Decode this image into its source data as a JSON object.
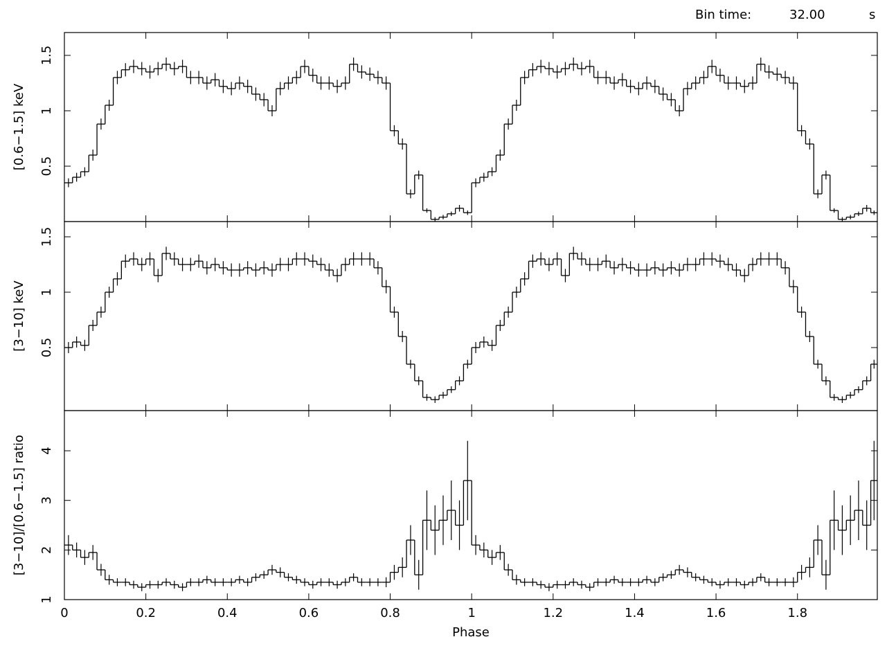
{
  "header": {
    "label": "Bin time:",
    "value": "32.00",
    "unit": "s"
  },
  "chart_data": [
    {
      "type": "step",
      "ylabel": "[0.6−1.5] keV",
      "ylim": [
        0,
        1.706
      ],
      "yticks": [
        0.5,
        1,
        1.5
      ],
      "xlim": [
        0,
        1.996
      ],
      "xticks": [
        0,
        0.2,
        0.4,
        0.6,
        0.8,
        1,
        1.2,
        1.4,
        1.6,
        1.8
      ],
      "x": [
        0,
        0.02,
        0.04,
        0.06,
        0.08,
        0.1,
        0.12,
        0.14,
        0.16,
        0.18,
        0.2,
        0.22,
        0.24,
        0.26,
        0.28,
        0.3,
        0.32,
        0.34,
        0.36,
        0.38,
        0.4,
        0.42,
        0.44,
        0.46,
        0.48,
        0.5,
        0.52,
        0.54,
        0.56,
        0.58,
        0.6,
        0.62,
        0.64,
        0.66,
        0.68,
        0.7,
        0.72,
        0.74,
        0.76,
        0.78,
        0.8,
        0.82,
        0.84,
        0.86,
        0.88,
        0.9,
        0.92,
        0.94,
        0.96,
        0.98,
        1,
        1.02,
        1.04,
        1.06,
        1.08,
        1.1,
        1.12,
        1.14,
        1.16,
        1.18,
        1.2,
        1.22,
        1.24,
        1.26,
        1.28,
        1.3,
        1.32,
        1.34,
        1.36,
        1.38,
        1.4,
        1.42,
        1.44,
        1.46,
        1.48,
        1.5,
        1.52,
        1.54,
        1.56,
        1.58,
        1.6,
        1.62,
        1.64,
        1.66,
        1.68,
        1.7,
        1.72,
        1.74,
        1.76,
        1.78,
        1.8,
        1.82,
        1.84,
        1.86,
        1.88,
        1.9,
        1.92,
        1.94,
        1.96,
        1.98
      ],
      "series": [
        {
          "color": "#000000",
          "values": [
            0.35,
            0.4,
            0.45,
            0.6,
            0.88,
            1.05,
            1.3,
            1.37,
            1.4,
            1.38,
            1.35,
            1.38,
            1.42,
            1.38,
            1.4,
            1.3,
            1.3,
            1.25,
            1.28,
            1.22,
            1.2,
            1.25,
            1.22,
            1.15,
            1.1,
            1.0,
            1.2,
            1.25,
            1.3,
            1.4,
            1.32,
            1.25,
            1.25,
            1.22,
            1.25,
            1.42,
            1.35,
            1.33,
            1.3,
            1.25,
            0.82,
            0.7,
            0.25,
            0.42,
            0.1,
            0.02,
            0.04,
            0.07,
            0.12,
            0.08,
            0.35,
            0.4,
            0.45,
            0.6,
            0.88,
            1.05,
            1.3,
            1.37,
            1.4,
            1.38,
            1.35,
            1.38,
            1.42,
            1.38,
            1.4,
            1.3,
            1.3,
            1.25,
            1.28,
            1.22,
            1.2,
            1.25,
            1.22,
            1.15,
            1.1,
            1.0,
            1.2,
            1.25,
            1.3,
            1.4,
            1.32,
            1.25,
            1.25,
            1.22,
            1.25,
            1.42,
            1.35,
            1.33,
            1.3,
            1.25,
            0.82,
            0.7,
            0.25,
            0.42,
            0.1,
            0.02,
            0.04,
            0.07,
            0.12,
            0.08
          ],
          "errors": [
            0.04,
            0.04,
            0.04,
            0.05,
            0.05,
            0.05,
            0.06,
            0.06,
            0.06,
            0.06,
            0.06,
            0.06,
            0.06,
            0.06,
            0.06,
            0.06,
            0.06,
            0.06,
            0.06,
            0.06,
            0.06,
            0.06,
            0.06,
            0.06,
            0.06,
            0.05,
            0.06,
            0.06,
            0.06,
            0.06,
            0.06,
            0.06,
            0.06,
            0.06,
            0.06,
            0.06,
            0.06,
            0.06,
            0.06,
            0.06,
            0.05,
            0.05,
            0.04,
            0.04,
            0.02,
            0.02,
            0.02,
            0.02,
            0.03,
            0.02,
            0.04,
            0.04,
            0.04,
            0.05,
            0.05,
            0.05,
            0.06,
            0.06,
            0.06,
            0.06,
            0.06,
            0.06,
            0.06,
            0.06,
            0.06,
            0.06,
            0.06,
            0.06,
            0.06,
            0.06,
            0.06,
            0.06,
            0.06,
            0.06,
            0.06,
            0.05,
            0.06,
            0.06,
            0.06,
            0.06,
            0.06,
            0.06,
            0.06,
            0.06,
            0.06,
            0.06,
            0.06,
            0.06,
            0.06,
            0.06,
            0.05,
            0.05,
            0.04,
            0.04,
            0.02,
            0.02,
            0.02,
            0.02,
            0.03,
            0.02
          ]
        }
      ]
    },
    {
      "type": "step",
      "ylabel": "[3−10] keV",
      "ylim": [
        -0.069,
        1.6375
      ],
      "yticks": [
        0.5,
        1,
        1.5
      ],
      "xlim": [
        0,
        1.996
      ],
      "xticks": [
        0,
        0.2,
        0.4,
        0.6,
        0.8,
        1,
        1.2,
        1.4,
        1.6,
        1.8
      ],
      "x": [
        0,
        0.02,
        0.04,
        0.06,
        0.08,
        0.1,
        0.12,
        0.14,
        0.16,
        0.18,
        0.2,
        0.22,
        0.24,
        0.26,
        0.28,
        0.3,
        0.32,
        0.34,
        0.36,
        0.38,
        0.4,
        0.42,
        0.44,
        0.46,
        0.48,
        0.5,
        0.52,
        0.54,
        0.56,
        0.58,
        0.6,
        0.62,
        0.64,
        0.66,
        0.68,
        0.7,
        0.72,
        0.74,
        0.76,
        0.78,
        0.8,
        0.82,
        0.84,
        0.86,
        0.88,
        0.9,
        0.92,
        0.94,
        0.96,
        0.98,
        1,
        1.02,
        1.04,
        1.06,
        1.08,
        1.1,
        1.12,
        1.14,
        1.16,
        1.18,
        1.2,
        1.22,
        1.24,
        1.26,
        1.28,
        1.3,
        1.32,
        1.34,
        1.36,
        1.38,
        1.4,
        1.42,
        1.44,
        1.46,
        1.48,
        1.5,
        1.52,
        1.54,
        1.56,
        1.58,
        1.6,
        1.62,
        1.64,
        1.66,
        1.68,
        1.7,
        1.72,
        1.74,
        1.76,
        1.78,
        1.8,
        1.82,
        1.84,
        1.86,
        1.88,
        1.9,
        1.92,
        1.94,
        1.96,
        1.98
      ],
      "series": [
        {
          "color": "#000000",
          "values": [
            0.5,
            0.55,
            0.52,
            0.7,
            0.82,
            1.0,
            1.12,
            1.28,
            1.3,
            1.25,
            1.3,
            1.15,
            1.35,
            1.3,
            1.25,
            1.25,
            1.28,
            1.22,
            1.25,
            1.22,
            1.2,
            1.2,
            1.22,
            1.2,
            1.22,
            1.2,
            1.25,
            1.25,
            1.3,
            1.3,
            1.28,
            1.25,
            1.2,
            1.15,
            1.25,
            1.3,
            1.3,
            1.3,
            1.22,
            1.05,
            0.82,
            0.6,
            0.35,
            0.2,
            0.05,
            0.03,
            0.07,
            0.12,
            0.2,
            0.35,
            0.5,
            0.55,
            0.52,
            0.7,
            0.82,
            1.0,
            1.12,
            1.28,
            1.3,
            1.25,
            1.3,
            1.15,
            1.35,
            1.3,
            1.25,
            1.25,
            1.28,
            1.22,
            1.25,
            1.22,
            1.2,
            1.2,
            1.22,
            1.2,
            1.22,
            1.2,
            1.25,
            1.25,
            1.3,
            1.3,
            1.28,
            1.25,
            1.2,
            1.15,
            1.25,
            1.3,
            1.3,
            1.3,
            1.22,
            1.05,
            0.82,
            0.6,
            0.35,
            0.2,
            0.05,
            0.03,
            0.07,
            0.12,
            0.2,
            0.35
          ],
          "errors": [
            0.05,
            0.05,
            0.05,
            0.05,
            0.05,
            0.05,
            0.06,
            0.06,
            0.06,
            0.06,
            0.06,
            0.06,
            0.06,
            0.06,
            0.06,
            0.06,
            0.06,
            0.06,
            0.06,
            0.06,
            0.06,
            0.06,
            0.06,
            0.06,
            0.06,
            0.06,
            0.06,
            0.06,
            0.06,
            0.06,
            0.06,
            0.06,
            0.06,
            0.06,
            0.06,
            0.06,
            0.06,
            0.06,
            0.06,
            0.06,
            0.05,
            0.05,
            0.04,
            0.04,
            0.03,
            0.03,
            0.03,
            0.03,
            0.04,
            0.04,
            0.05,
            0.05,
            0.05,
            0.05,
            0.05,
            0.05,
            0.06,
            0.06,
            0.06,
            0.06,
            0.06,
            0.06,
            0.06,
            0.06,
            0.06,
            0.06,
            0.06,
            0.06,
            0.06,
            0.06,
            0.06,
            0.06,
            0.06,
            0.06,
            0.06,
            0.06,
            0.06,
            0.06,
            0.06,
            0.06,
            0.06,
            0.06,
            0.06,
            0.06,
            0.06,
            0.06,
            0.06,
            0.06,
            0.06,
            0.06,
            0.05,
            0.05,
            0.04,
            0.04,
            0.03,
            0.03,
            0.03,
            0.03,
            0.04,
            0.04
          ]
        }
      ]
    },
    {
      "type": "step",
      "ylabel": "[3−10]/[0.6−1.5] ratio",
      "xlabel": "Phase",
      "ylim": [
        1,
        4.81
      ],
      "yticks": [
        1,
        2,
        3,
        4
      ],
      "xlim": [
        0,
        1.996
      ],
      "xticks": [
        0,
        0.2,
        0.4,
        0.6,
        0.8,
        1,
        1.2,
        1.4,
        1.6,
        1.8
      ],
      "x": [
        0,
        0.02,
        0.04,
        0.06,
        0.08,
        0.1,
        0.12,
        0.14,
        0.16,
        0.18,
        0.2,
        0.22,
        0.24,
        0.26,
        0.28,
        0.3,
        0.32,
        0.34,
        0.36,
        0.38,
        0.4,
        0.42,
        0.44,
        0.46,
        0.48,
        0.5,
        0.52,
        0.54,
        0.56,
        0.58,
        0.6,
        0.62,
        0.64,
        0.66,
        0.68,
        0.7,
        0.72,
        0.74,
        0.76,
        0.78,
        0.8,
        0.82,
        0.84,
        0.86,
        0.88,
        0.9,
        0.92,
        0.94,
        0.96,
        0.98,
        1,
        1.02,
        1.04,
        1.06,
        1.08,
        1.1,
        1.12,
        1.14,
        1.16,
        1.18,
        1.2,
        1.22,
        1.24,
        1.26,
        1.28,
        1.3,
        1.32,
        1.34,
        1.36,
        1.38,
        1.4,
        1.42,
        1.44,
        1.46,
        1.48,
        1.5,
        1.52,
        1.54,
        1.56,
        1.58,
        1.6,
        1.62,
        1.64,
        1.66,
        1.68,
        1.7,
        1.72,
        1.74,
        1.76,
        1.78,
        1.8,
        1.82,
        1.84,
        1.86,
        1.88,
        1.9,
        1.92,
        1.94,
        1.96,
        1.98
      ],
      "series": [
        {
          "color": "#000000",
          "values": [
            2.1,
            2.0,
            1.85,
            1.95,
            1.6,
            1.4,
            1.35,
            1.35,
            1.3,
            1.25,
            1.3,
            1.3,
            1.35,
            1.3,
            1.25,
            1.35,
            1.35,
            1.4,
            1.35,
            1.35,
            1.35,
            1.4,
            1.35,
            1.45,
            1.5,
            1.6,
            1.55,
            1.45,
            1.4,
            1.35,
            1.3,
            1.35,
            1.35,
            1.3,
            1.35,
            1.45,
            1.35,
            1.35,
            1.35,
            1.35,
            1.55,
            1.65,
            2.2,
            1.5,
            2.6,
            2.4,
            2.6,
            2.8,
            2.5,
            3.4,
            2.1,
            2.0,
            1.85,
            1.95,
            1.6,
            1.4,
            1.35,
            1.35,
            1.3,
            1.25,
            1.3,
            1.3,
            1.35,
            1.3,
            1.25,
            1.35,
            1.35,
            1.4,
            1.35,
            1.35,
            1.35,
            1.4,
            1.35,
            1.45,
            1.5,
            1.6,
            1.55,
            1.45,
            1.4,
            1.35,
            1.3,
            1.35,
            1.35,
            1.3,
            1.35,
            1.45,
            1.35,
            1.35,
            1.35,
            1.35,
            1.55,
            1.65,
            2.2,
            1.5,
            2.6,
            2.4,
            2.6,
            2.8,
            2.5,
            3.4
          ],
          "errors": [
            0.2,
            0.15,
            0.15,
            0.15,
            0.12,
            0.1,
            0.08,
            0.08,
            0.08,
            0.08,
            0.08,
            0.08,
            0.08,
            0.08,
            0.08,
            0.08,
            0.08,
            0.08,
            0.08,
            0.08,
            0.08,
            0.08,
            0.08,
            0.08,
            0.08,
            0.1,
            0.1,
            0.08,
            0.08,
            0.08,
            0.08,
            0.08,
            0.08,
            0.08,
            0.08,
            0.08,
            0.08,
            0.08,
            0.08,
            0.1,
            0.15,
            0.2,
            0.3,
            0.3,
            0.6,
            0.5,
            0.5,
            0.6,
            0.5,
            0.8,
            0.2,
            0.15,
            0.15,
            0.15,
            0.12,
            0.1,
            0.08,
            0.08,
            0.08,
            0.08,
            0.08,
            0.08,
            0.08,
            0.08,
            0.08,
            0.08,
            0.08,
            0.08,
            0.08,
            0.08,
            0.08,
            0.08,
            0.08,
            0.08,
            0.08,
            0.1,
            0.1,
            0.08,
            0.08,
            0.08,
            0.08,
            0.08,
            0.08,
            0.08,
            0.08,
            0.08,
            0.08,
            0.08,
            0.08,
            0.1,
            0.15,
            0.2,
            0.3,
            0.3,
            0.6,
            0.5,
            0.5,
            0.6,
            0.5,
            0.8
          ]
        }
      ]
    }
  ]
}
